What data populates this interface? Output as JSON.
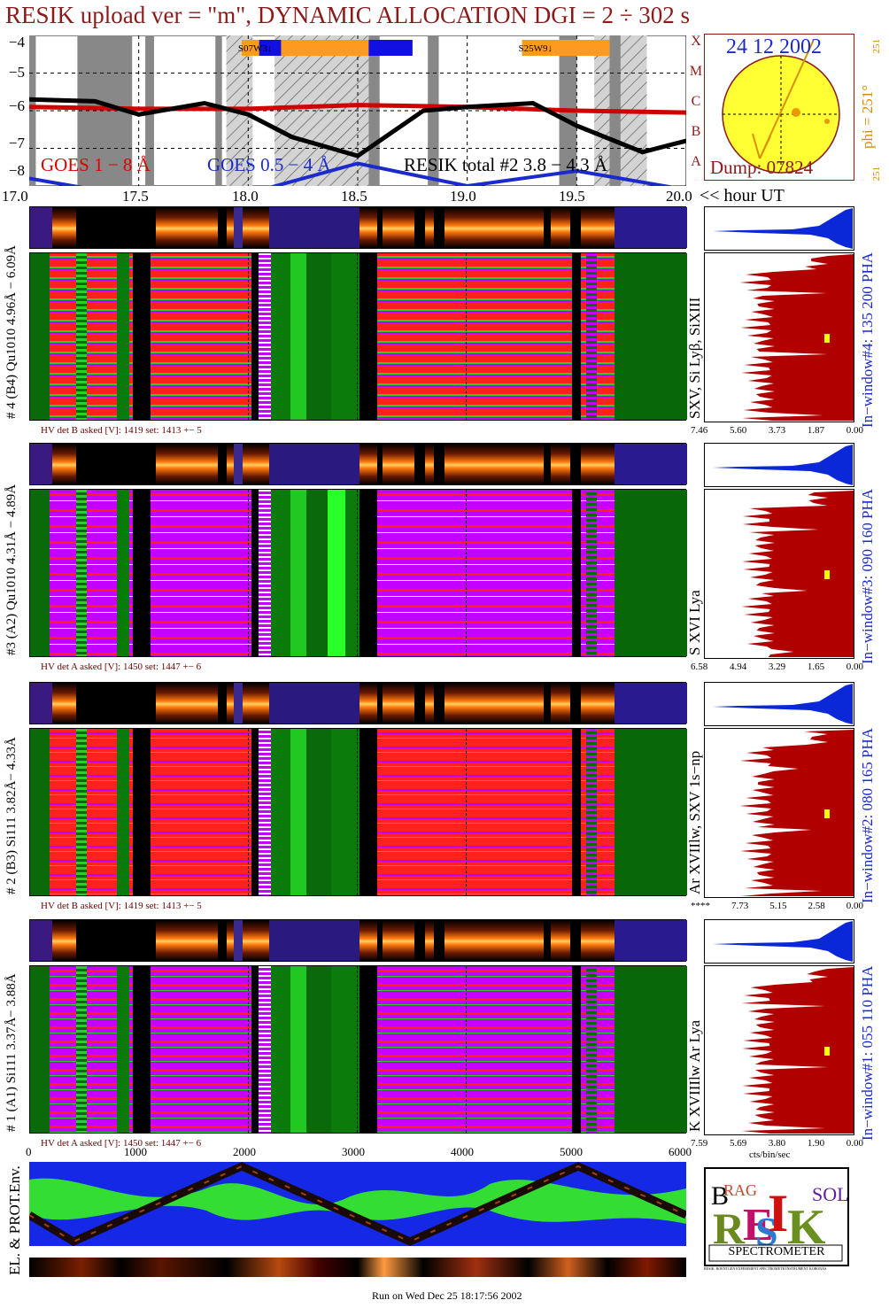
{
  "header": {
    "title": "RESIK upload ver = \"m\", DYNAMIC ALLOCATION  DGI =   2 ÷ 302 s"
  },
  "goes": {
    "y_ticks": [
      "−4",
      "−5",
      "−6",
      "−7",
      "−8"
    ],
    "x_ticks": [
      "17.0",
      "17.5",
      "18.0",
      "18.5",
      "19.0",
      "19.5",
      "20.0"
    ],
    "x_unit": "<< hour UT",
    "legend": {
      "goes1": "GOES 1 − 8 Å",
      "goes05": "GOES 0.5 − 4 Å",
      "resik": "RESIK total #2  3.8 − 4.3 Å"
    },
    "class_letters": [
      "X",
      "M",
      "C",
      "B",
      "A"
    ],
    "regions": [
      "S07W3↓",
      "S25W9↓"
    ]
  },
  "sun": {
    "date": "24 12 2002",
    "phi": "phi = 251°",
    "phi_top": "251",
    "phi_bottom": "251",
    "dump": "Dump: 07824"
  },
  "detectors": [
    {
      "left_label": "# 4 (B4) Qu1010 4.96Å − 6.09Å",
      "line_label": "SXV, Si Lyβ, SiXIII",
      "window_label": "In−window#4:  135 200 PHA",
      "hv": "HV det B asked [V]:  1419 set:  1413 +−   5",
      "axis": [
        "7.46",
        "5.60",
        "3.73",
        "1.87",
        "0.00"
      ]
    },
    {
      "left_label": "#3 (A2) Qu1010  4.31Å − 4.89Å",
      "line_label": "S XVI Lya",
      "window_label": "In−window#3:  090 160 PHA",
      "hv": "HV det A asked [V]:  1450 set:  1447 +−   6",
      "axis": [
        "6.58",
        "4.94",
        "3.29",
        "1.65",
        "0.00"
      ]
    },
    {
      "left_label": "# 2 (B3) Si111  3.82Å− 4.33Å",
      "line_label": "Ar XVIIlw,  SXV 1s−np",
      "window_label": "In−window#2:  080 165 PHA",
      "hv": "HV det B asked [V]:  1419 set:  1413 +−   5",
      "axis": [
        "****",
        "7.73",
        "5.15",
        "2.58",
        "0.00"
      ]
    },
    {
      "left_label": "# 1 (A1) Si111  3.37Å− 3.88Å",
      "line_label": "K XVIIIlw  Ar Lya",
      "window_label": "In−window#1:  055 110 PHA",
      "hv": "HV det A asked [V]:  1450 set:  1447 +−   6",
      "axis": [
        "7.59",
        "5.69",
        "3.80",
        "1.90",
        "0.00"
      ]
    }
  ],
  "spectra_unit": "cts/bin/sec",
  "env": {
    "y_label": "EL. & PROT.Env.",
    "x_ticks": [
      "0",
      "1000",
      "2000",
      "3000",
      "4000",
      "5000",
      "6000"
    ]
  },
  "logo": {
    "bottom_text": "SPECTROMETER",
    "subtext": "RESIK: ROENTGEN EXPERIMENT SPECTROMETR INSTRUMENT KORONAS"
  },
  "footer": {
    "run": "Run on Wed Dec 25 18:17:56 2002"
  },
  "colors": {
    "brand": "#8b1a1a",
    "goes_low": "#d00000",
    "goes_high": "#1a2acc",
    "panel_red": "#ff1a1a",
    "panel_magenta": "#c400ff",
    "panel_green": "#0a7a0a",
    "spectrum": "#b00000",
    "pha": "#0a28d8"
  },
  "chart_data": [
    {
      "type": "line",
      "title": "RESIK upload ver = \"m\", DYNAMIC ALLOCATION  DGI =   2 ÷ 302 s",
      "xlabel": "<< hour UT",
      "xlim": [
        17.0,
        20.0
      ],
      "ylim": [
        -8,
        -4
      ],
      "series": [
        {
          "name": "GOES 1 − 8 Å",
          "x": [
            17.0,
            17.5,
            18.0,
            18.5,
            19.0,
            19.5,
            20.0
          ],
          "values": [
            -5.9,
            -5.95,
            -5.95,
            -5.85,
            -5.9,
            -6.0,
            -6.05
          ]
        },
        {
          "name": "GOES 0.5 − 4 Å",
          "x": [
            17.0,
            17.5,
            18.0,
            18.5,
            19.0,
            19.5,
            20.0
          ],
          "values": [
            -7.8,
            -8.3,
            -8.2,
            -7.4,
            -8.0,
            -7.6,
            -8.1
          ]
        },
        {
          "name": "RESIK total #2  3.8 − 4.3 Å",
          "x": [
            17.0,
            17.3,
            17.5,
            17.8,
            18.0,
            18.2,
            18.5,
            18.8,
            19.0,
            19.3,
            19.5,
            19.8,
            20.0
          ],
          "values": [
            -5.7,
            -5.75,
            -6.1,
            -5.8,
            -6.1,
            -6.7,
            -7.2,
            -6.0,
            -5.9,
            -5.8,
            -6.4,
            -7.1,
            -6.8
          ]
        }
      ]
    }
  ]
}
